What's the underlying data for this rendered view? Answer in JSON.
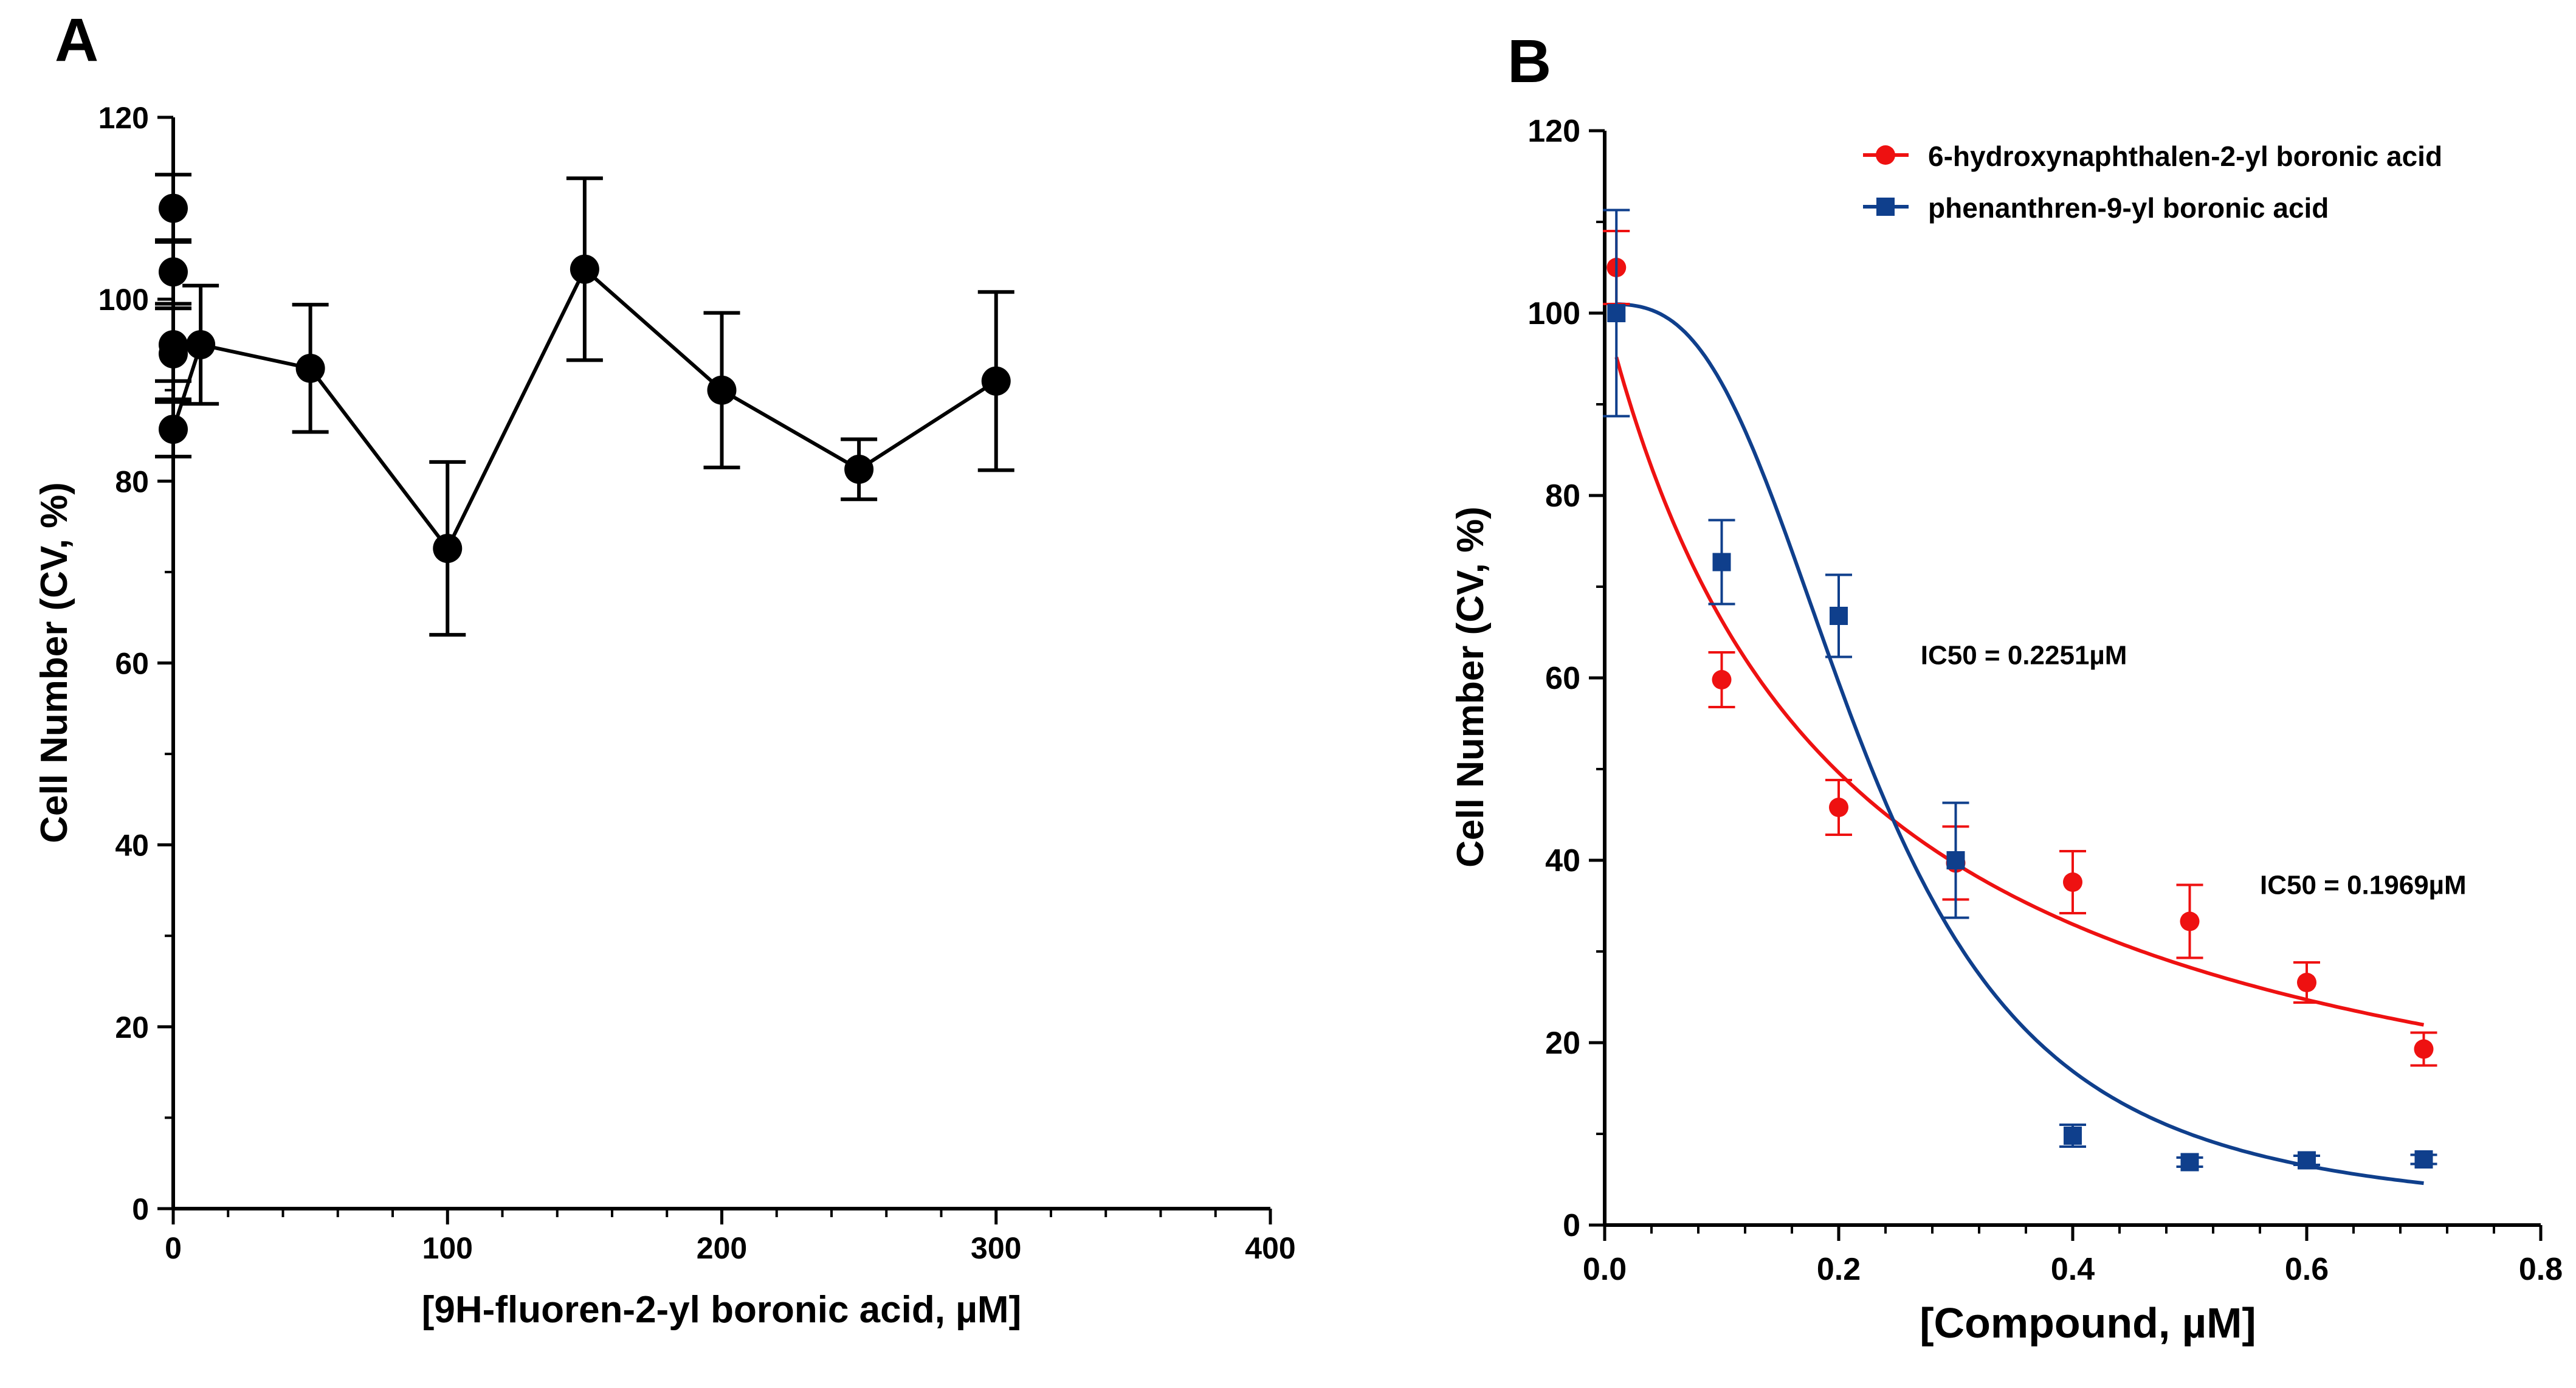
{
  "panels": {
    "a": {
      "label": "A"
    },
    "b": {
      "label": "B"
    }
  },
  "chart_data": [
    {
      "panel": "A",
      "type": "line",
      "xlabel": "[9H-fluoren-2-yl boronic acid, µM]",
      "ylabel": "Cell Number (CV, %)",
      "xlim": [
        0,
        400
      ],
      "ylim": [
        0,
        120
      ],
      "xticks": [
        "0",
        "100",
        "200",
        "300",
        "400"
      ],
      "yticks": [
        "0",
        "20",
        "40",
        "60",
        "80",
        "100",
        "120"
      ],
      "grid": false,
      "series": [
        {
          "color": "#000000",
          "marker": "circle",
          "points": [
            {
              "x": 0,
              "y": 110,
              "err": 3.7
            },
            {
              "x": 0,
              "y": 103,
              "err": 3.5
            },
            {
              "x": 0,
              "y": 95,
              "err": 4
            },
            {
              "x": 0,
              "y": 94,
              "err": 5
            },
            {
              "x": 0,
              "y": 85.7,
              "err": 3
            },
            {
              "x": 10,
              "y": 95,
              "err": 6.5
            },
            {
              "x": 50,
              "y": 92.4,
              "err": 7
            },
            {
              "x": 100,
              "y": 72.6,
              "err": 9.5
            },
            {
              "x": 150,
              "y": 103.3,
              "err": 10
            },
            {
              "x": 200,
              "y": 90,
              "err": 8.5
            },
            {
              "x": 250,
              "y": 81.3,
              "err": 3.3
            },
            {
              "x": 300,
              "y": 91,
              "err": 9.8
            }
          ]
        }
      ]
    },
    {
      "panel": "B",
      "type": "scatter",
      "xlabel": "[Compound, µM]",
      "ylabel": "Cell Number (CV, %)",
      "xlim": [
        0,
        0.8
      ],
      "ylim": [
        0,
        120
      ],
      "xticks": [
        "0.0",
        "0.2",
        "0.4",
        "0.6",
        "0.8"
      ],
      "yticks": [
        "0",
        "20",
        "40",
        "60",
        "80",
        "100",
        "120"
      ],
      "grid": false,
      "legend_position": "top-right",
      "series": [
        {
          "name": "6-hydroxynaphthalen-2-yl boronic acid",
          "color": "#ee1111",
          "marker": "circle",
          "fit": {
            "top": 100,
            "bottom": 0,
            "ic50": 0.1969,
            "hill": 1.0
          },
          "points": [
            {
              "x": 0.01,
              "y": 105,
              "err": 4
            },
            {
              "x": 0.1,
              "y": 59.8,
              "err": 3
            },
            {
              "x": 0.2,
              "y": 45.8,
              "err": 3
            },
            {
              "x": 0.3,
              "y": 39.7,
              "err": 4
            },
            {
              "x": 0.4,
              "y": 37.6,
              "err": 3.4
            },
            {
              "x": 0.5,
              "y": 33.3,
              "err": 4
            },
            {
              "x": 0.6,
              "y": 26.6,
              "err": 2.2
            },
            {
              "x": 0.7,
              "y": 19.3,
              "err": 1.8
            }
          ]
        },
        {
          "name": "phenanthren-9-yl boronic acid",
          "color": "#0f3f8c",
          "marker": "square",
          "fit": {
            "top": 101,
            "bottom": 1,
            "ic50": 0.2251,
            "hill": 2.9
          },
          "points": [
            {
              "x": 0.01,
              "y": 100,
              "err": 11.3
            },
            {
              "x": 0.1,
              "y": 72.7,
              "err": 4.6
            },
            {
              "x": 0.2,
              "y": 66.8,
              "err": 4.5
            },
            {
              "x": 0.3,
              "y": 40,
              "err": 6.3
            },
            {
              "x": 0.4,
              "y": 9.8,
              "err": 1.2
            },
            {
              "x": 0.5,
              "y": 6.9,
              "err": 0.5
            },
            {
              "x": 0.6,
              "y": 7.1,
              "err": 0.5
            },
            {
              "x": 0.7,
              "y": 7.2,
              "err": 0.5
            }
          ]
        }
      ],
      "annotations": [
        {
          "text": "IC50 = 0.2251µM",
          "x": 0.27,
          "y": 61.5
        },
        {
          "text": "IC50 = 0.1969µM",
          "x": 0.56,
          "y": 36.3
        }
      ]
    }
  ]
}
